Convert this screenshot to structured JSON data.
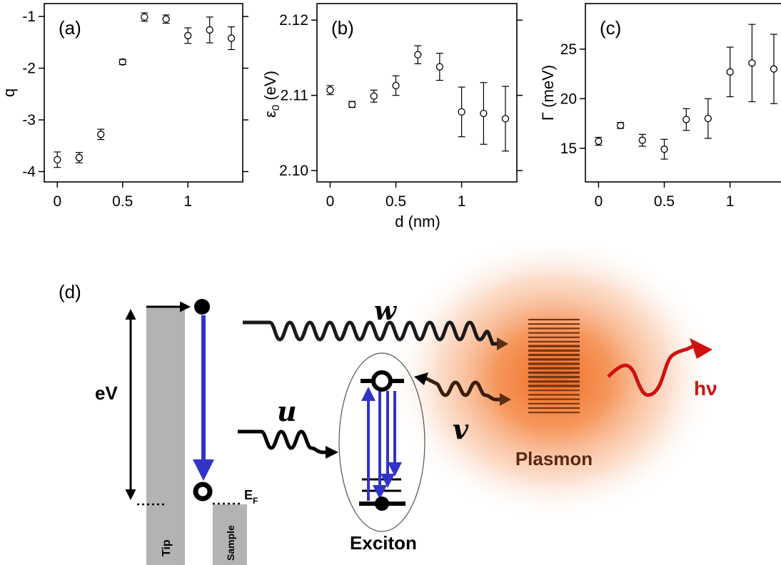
{
  "chart_data": [
    {
      "type": "scatter",
      "panel_label": "(a)",
      "ylabel": "q",
      "xlabel": "",
      "x": [
        0,
        0.167,
        0.333,
        0.5,
        0.667,
        0.833,
        1.0,
        1.167,
        1.333
      ],
      "y": [
        -3.77,
        -3.73,
        -3.28,
        -1.88,
        -1.01,
        -1.05,
        -1.37,
        -1.26,
        -1.42
      ],
      "err": [
        0.15,
        0.1,
        0.1,
        0.05,
        0.08,
        0.08,
        0.15,
        0.25,
        0.22
      ],
      "xlim": [
        -0.1,
        1.42
      ],
      "ylim": [
        -4.2,
        -0.75
      ],
      "xticks": [
        0,
        0.5,
        1
      ],
      "xtick_labels": [
        "0",
        "0.5",
        "1"
      ],
      "yticks": [
        -4,
        -3,
        -2,
        -1
      ],
      "ytick_labels": [
        "-4",
        "-3",
        "-2",
        "-1"
      ]
    },
    {
      "type": "scatter",
      "panel_label": "(b)",
      "ylabel": "ε0 (eV)",
      "xlabel": "d (nm)",
      "x": [
        0,
        0.167,
        0.333,
        0.5,
        0.667,
        0.833,
        1.0,
        1.167,
        1.333
      ],
      "y": [
        2.1107,
        2.1088,
        2.1099,
        2.1113,
        2.1154,
        2.1138,
        2.1078,
        2.1076,
        2.1069
      ],
      "err": [
        0.0006,
        0.0004,
        0.0008,
        0.0013,
        0.0012,
        0.0018,
        0.0033,
        0.0041,
        0.0043
      ],
      "xlim": [
        -0.1,
        1.42
      ],
      "ylim": [
        2.0985,
        2.1222
      ],
      "xticks": [
        0,
        0.5,
        1
      ],
      "xtick_labels": [
        "0",
        "0.5",
        "1"
      ],
      "yticks": [
        2.1,
        2.11,
        2.12
      ],
      "ytick_labels": [
        "2.10",
        "2.11",
        "2.12"
      ]
    },
    {
      "type": "scatter",
      "panel_label": "(c)",
      "ylabel": "Γ (meV)",
      "xlabel": "",
      "x": [
        0,
        0.167,
        0.333,
        0.5,
        0.667,
        0.833,
        1.0,
        1.167,
        1.333
      ],
      "y": [
        15.7,
        17.3,
        15.8,
        14.9,
        17.9,
        18.0,
        22.7,
        23.6,
        23.0
      ],
      "err": [
        0.4,
        0.3,
        0.6,
        1.0,
        1.1,
        2.0,
        2.5,
        3.9,
        3.5
      ],
      "xlim": [
        -0.1,
        1.42
      ],
      "ylim": [
        11.6,
        29.6
      ],
      "xticks": [
        0,
        0.5,
        1
      ],
      "xtick_labels": [
        "0",
        "0.5",
        "1"
      ],
      "yticks": [
        15,
        20,
        25
      ],
      "ytick_labels": [
        "15",
        "20",
        "25"
      ]
    }
  ],
  "diagram": {
    "panel_label": "(d)",
    "ev_label": "eV",
    "w_label": "w",
    "u_label": "u",
    "v_label": "v",
    "hv_label": "hν",
    "plasmon_label": "Plasmon",
    "exciton_label": "Exciton",
    "ef_label": "E",
    "ef_sub": "F",
    "tip_label": "Tip",
    "sample_label": "Sample",
    "colors": {
      "plasmon_glow": "#f26a21",
      "plasmon_bars": "#7a3410",
      "plasmon_text": "#5a2a10",
      "transition_blue": "#3333c8",
      "photon_red": "#d01010",
      "electrode_gray": "#b3b3b3"
    }
  }
}
